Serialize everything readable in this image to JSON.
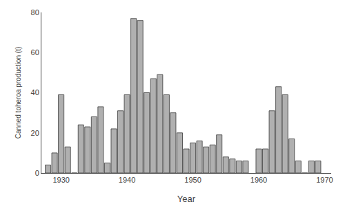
{
  "chart_data": {
    "type": "bar",
    "x": [
      1928,
      1929,
      1930,
      1931,
      1932,
      1933,
      1934,
      1935,
      1936,
      1937,
      1938,
      1939,
      1940,
      1941,
      1942,
      1943,
      1944,
      1945,
      1946,
      1947,
      1948,
      1949,
      1950,
      1951,
      1952,
      1953,
      1954,
      1955,
      1956,
      1957,
      1958,
      1960,
      1961,
      1962,
      1963,
      1964,
      1965,
      1966,
      1967,
      1968,
      1969
    ],
    "values": [
      4,
      10,
      39,
      13,
      0,
      24,
      23,
      28,
      33,
      5,
      22,
      31,
      39,
      77,
      76,
      40,
      47,
      49,
      39,
      30,
      20,
      12,
      15,
      16,
      13,
      14,
      19,
      8,
      7,
      6,
      6,
      12,
      12,
      31,
      43,
      39,
      17,
      6,
      0,
      6,
      6
    ],
    "color": "#b0b0b0",
    "xlabel": "Year",
    "ylabel": "Canned toheroa production (t)",
    "xlim": [
      1927,
      1971
    ],
    "xticks": [
      1930,
      1940,
      1950,
      1960,
      1970
    ],
    "ylim": [
      0,
      80
    ],
    "yticks": [
      0,
      20,
      40,
      60,
      80
    ],
    "grid": false
  }
}
